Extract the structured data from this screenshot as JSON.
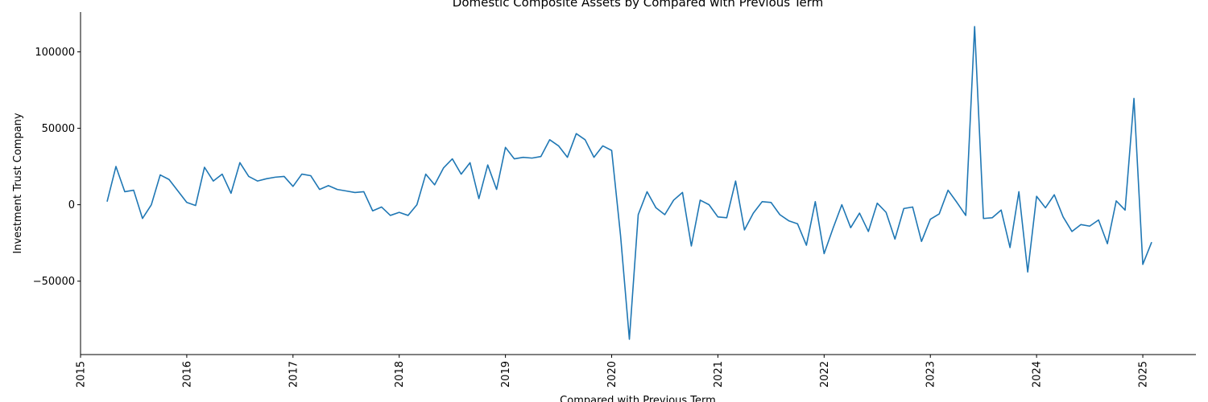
{
  "chart_data": {
    "type": "line",
    "title": "Domestic Composite Assets by Compared with Previous Term",
    "xlabel": "Compared with Previous Term",
    "ylabel": "Investment Trust Company",
    "x_ticks": [
      "2015",
      "2016",
      "2017",
      "2018",
      "2019",
      "2020",
      "2021",
      "2022",
      "2023",
      "2024",
      "2025"
    ],
    "y_ticks": [
      -50000,
      0,
      50000,
      100000
    ],
    "y_tick_labels": [
      "−50000",
      "0",
      "50000",
      "100000"
    ],
    "xlim": [
      "2015-01",
      "2025-07"
    ],
    "ylim": [
      -98000,
      126000
    ],
    "grid": false,
    "legend": "none",
    "series": [
      {
        "color": "#1f77b4",
        "x": [
          "2015-04",
          "2015-05",
          "2015-06",
          "2015-07",
          "2015-08",
          "2015-09",
          "2015-10",
          "2015-11",
          "2015-12",
          "2016-01",
          "2016-02",
          "2016-03",
          "2016-04",
          "2016-05",
          "2016-06",
          "2016-07",
          "2016-08",
          "2016-09",
          "2016-10",
          "2016-11",
          "2016-12",
          "2017-01",
          "2017-02",
          "2017-03",
          "2017-04",
          "2017-05",
          "2017-06",
          "2017-07",
          "2017-08",
          "2017-09",
          "2017-10",
          "2017-11",
          "2017-12",
          "2018-01",
          "2018-02",
          "2018-03",
          "2018-04",
          "2018-05",
          "2018-06",
          "2018-07",
          "2018-08",
          "2018-09",
          "2018-10",
          "2018-11",
          "2018-12",
          "2019-01",
          "2019-02",
          "2019-03",
          "2019-04",
          "2019-05",
          "2019-06",
          "2019-07",
          "2019-08",
          "2019-09",
          "2019-10",
          "2019-11",
          "2019-12",
          "2020-01",
          "2020-02",
          "2020-03",
          "2020-04",
          "2020-05",
          "2020-06",
          "2020-07",
          "2020-08",
          "2020-09",
          "2020-10",
          "2020-11",
          "2020-12",
          "2021-01",
          "2021-02",
          "2021-03",
          "2021-04",
          "2021-05",
          "2021-06",
          "2021-07",
          "2021-08",
          "2021-09",
          "2021-10",
          "2021-11",
          "2021-12",
          "2022-01",
          "2022-02",
          "2022-03",
          "2022-04",
          "2022-05",
          "2022-06",
          "2022-07",
          "2022-08",
          "2022-09",
          "2022-10",
          "2022-11",
          "2022-12",
          "2023-01",
          "2023-02",
          "2023-03",
          "2023-04",
          "2023-05",
          "2023-06",
          "2023-07",
          "2023-08",
          "2023-09",
          "2023-10",
          "2023-11",
          "2023-12",
          "2024-01",
          "2024-02",
          "2024-03",
          "2024-04",
          "2024-05",
          "2024-06",
          "2024-07",
          "2024-08",
          "2024-09",
          "2024-10",
          "2024-11",
          "2024-12",
          "2025-01",
          "2025-02"
        ],
        "values": [
          2000,
          25000,
          8500,
          9500,
          -9000,
          0,
          19500,
          16500,
          9000,
          1500,
          -500,
          24500,
          15500,
          20000,
          7500,
          27500,
          18500,
          15500,
          17000,
          18000,
          18500,
          12000,
          20000,
          19000,
          10000,
          12500,
          10000,
          9000,
          8000,
          8500,
          -4000,
          -1500,
          -7000,
          -5000,
          -7000,
          0,
          20000,
          13000,
          24000,
          30000,
          20000,
          27500,
          4000,
          26000,
          10000,
          37500,
          30000,
          31000,
          30500,
          31500,
          42500,
          38500,
          31000,
          46500,
          42500,
          31000,
          38500,
          35500,
          -20000,
          -88000,
          -6500,
          8500,
          -2000,
          -6500,
          3000,
          8000,
          -27000,
          3000,
          0,
          -8000,
          -8500,
          15500,
          -16500,
          -5500,
          2000,
          1500,
          -6500,
          -10500,
          -12500,
          -26500,
          2000,
          -32000,
          -15500,
          0,
          -15000,
          -5500,
          -17500,
          1000,
          -5000,
          -22500,
          -2500,
          -1500,
          -24000,
          -9500,
          -6000,
          9500,
          1500,
          -7000,
          116500,
          -9000,
          -8500,
          -3500,
          -28000,
          8500,
          -44000,
          5500,
          -2000,
          6500,
          -8000,
          -17500,
          -13000,
          -14000,
          -10000,
          -25500,
          2500,
          -3500,
          69500,
          -39000,
          -24500
        ]
      }
    ]
  }
}
